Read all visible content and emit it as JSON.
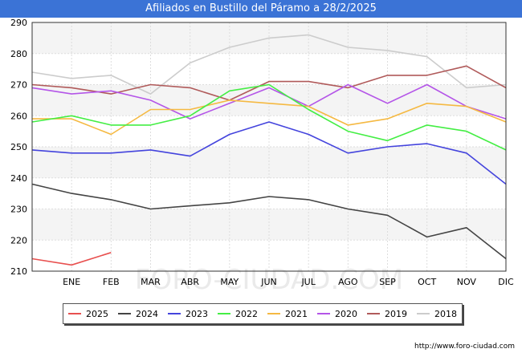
{
  "header": {
    "title": "Afiliados en Bustillo del Páramo a 28/2/2025"
  },
  "source": "http://www.foro-ciudad.com",
  "watermark": "FORO-CIUDAD.COM",
  "chart_data": {
    "type": "line",
    "categories": [
      "",
      "ENE",
      "FEB",
      "MAR",
      "ABR",
      "MAY",
      "JUN",
      "JUL",
      "AGO",
      "SEP",
      "OCT",
      "NOV",
      "DIC"
    ],
    "ylim": [
      210,
      290
    ],
    "yticks": [
      210,
      220,
      230,
      240,
      250,
      260,
      270,
      280,
      290
    ],
    "grid": true,
    "legend_position": "bottom",
    "series": [
      {
        "name": "2025",
        "color": "#e8504f",
        "values": [
          214,
          212,
          216,
          null,
          null,
          null,
          null,
          null,
          null,
          null,
          null,
          null,
          null
        ]
      },
      {
        "name": "2024",
        "color": "#444444",
        "values": [
          238,
          235,
          233,
          230,
          231,
          232,
          234,
          233,
          230,
          228,
          221,
          224,
          214
        ]
      },
      {
        "name": "2023",
        "color": "#4444dd",
        "values": [
          249,
          248,
          248,
          249,
          247,
          254,
          258,
          254,
          248,
          250,
          251,
          248,
          238
        ]
      },
      {
        "name": "2022",
        "color": "#44ee44",
        "values": [
          258,
          260,
          257,
          257,
          260,
          268,
          270,
          262,
          255,
          252,
          257,
          255,
          249
        ]
      },
      {
        "name": "2021",
        "color": "#f5b942",
        "values": [
          259,
          259,
          254,
          262,
          262,
          265,
          264,
          263,
          257,
          259,
          264,
          263,
          258
        ]
      },
      {
        "name": "2020",
        "color": "#b455e8",
        "values": [
          269,
          267,
          268,
          265,
          259,
          264,
          269,
          263,
          270,
          264,
          270,
          263,
          259
        ]
      },
      {
        "name": "2019",
        "color": "#b05a5a",
        "values": [
          270,
          269,
          267,
          270,
          269,
          265,
          271,
          271,
          269,
          273,
          273,
          276,
          269
        ]
      },
      {
        "name": "2018",
        "color": "#cccccc",
        "values": [
          274,
          272,
          273,
          267,
          277,
          282,
          285,
          286,
          282,
          281,
          279,
          269,
          270
        ]
      }
    ]
  }
}
